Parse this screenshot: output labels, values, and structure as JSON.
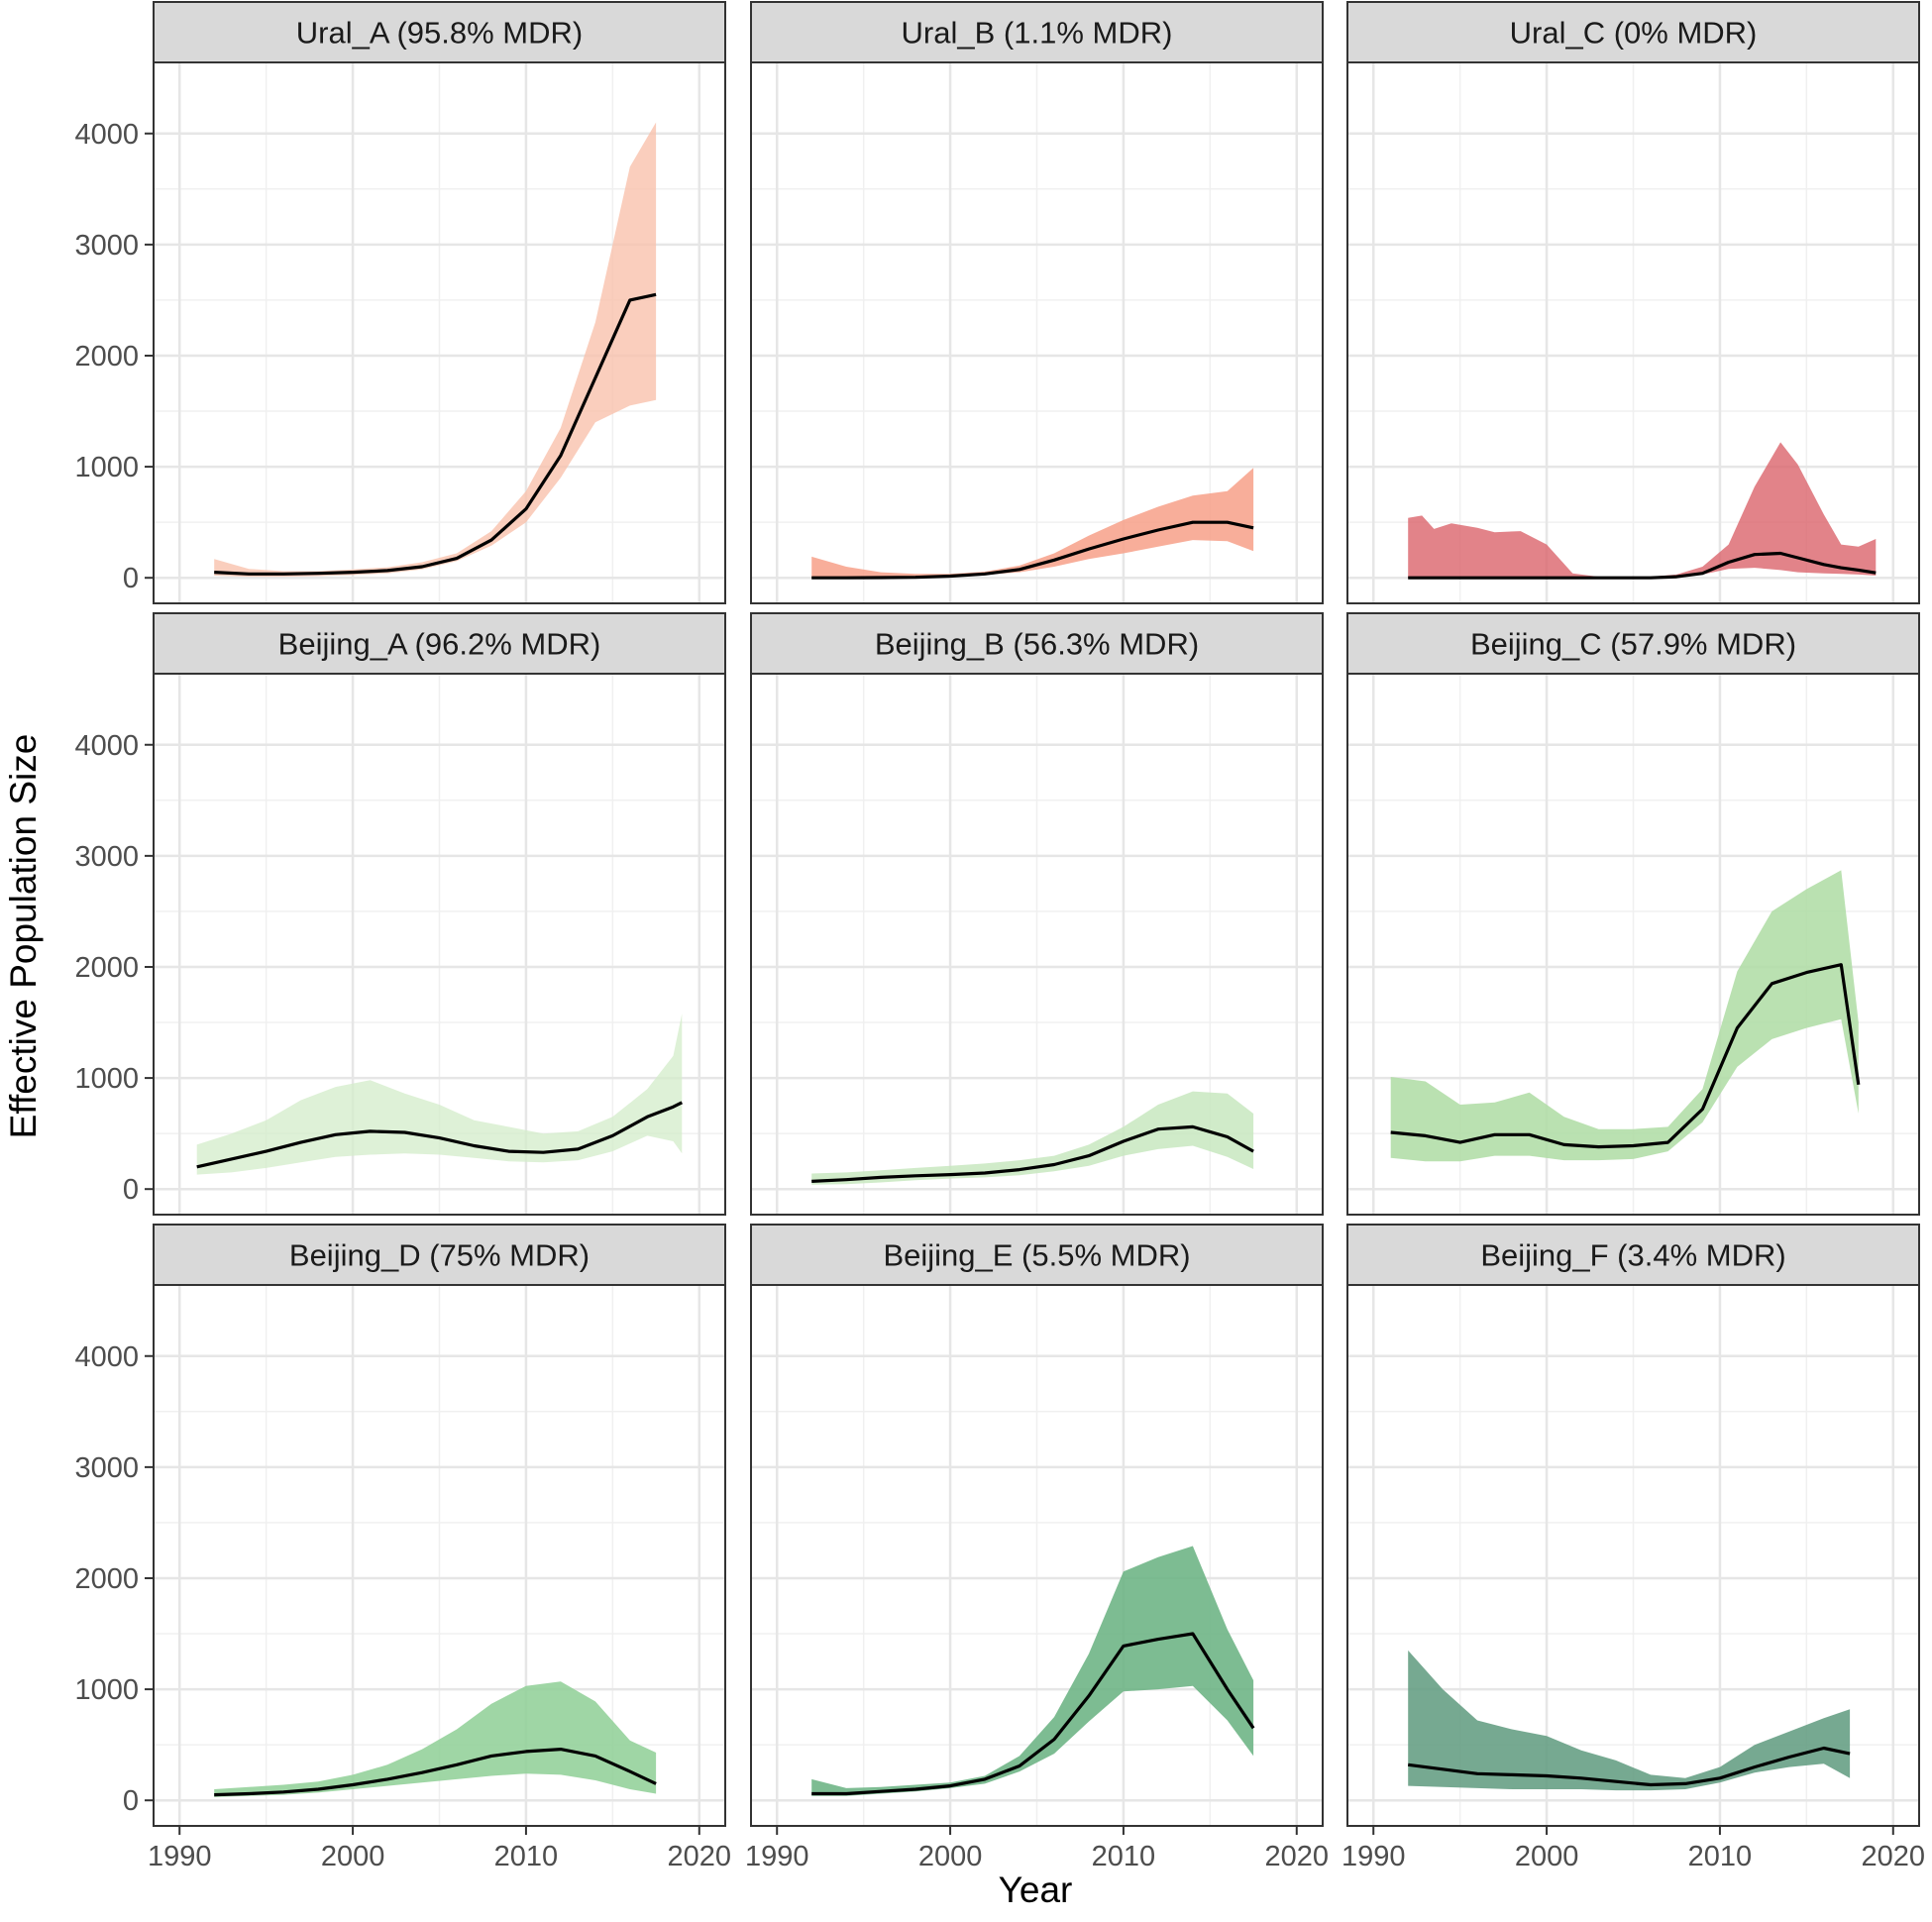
{
  "chart_data": {
    "type": "area",
    "title": "",
    "xlabel": "Year",
    "ylabel": "Effective Population Size",
    "xlim": [
      1988.5,
      2021.5
    ],
    "ylim": [
      -230,
      4640
    ],
    "xticks": [
      1990,
      2000,
      2010,
      2020
    ],
    "xtick_labels": [
      "1990",
      "2000",
      "2010",
      "2020"
    ],
    "yticks": [
      0,
      1000,
      2000,
      3000,
      4000
    ],
    "ytick_labels": [
      "0",
      "1000",
      "2000",
      "3000",
      "4000"
    ],
    "grid": true,
    "legend": "none",
    "panels": [
      {
        "name": "ural-a",
        "title": "Ural_A (95.8% MDR)",
        "color": "#f8c0aa",
        "opacity": 0.78,
        "x": [
          1992,
          1994,
          1996,
          1998,
          2000,
          2002,
          2004,
          2006,
          2008,
          2010,
          2012,
          2014,
          2016,
          2017.5
        ],
        "lower": [
          20,
          10,
          10,
          15,
          25,
          40,
          75,
          150,
          290,
          500,
          900,
          1400,
          1550,
          1600
        ],
        "median": [
          50,
          35,
          35,
          40,
          50,
          65,
          100,
          175,
          340,
          620,
          1100,
          1800,
          2500,
          2550
        ],
        "upper": [
          170,
          80,
          60,
          60,
          75,
          95,
          140,
          220,
          420,
          780,
          1350,
          2300,
          3700,
          4100
        ]
      },
      {
        "name": "ural-b",
        "title": "Ural_B (1.1% MDR)",
        "color": "#f7a088",
        "opacity": 0.85,
        "x": [
          1992,
          1994,
          1996,
          1998,
          2000,
          2002,
          2004,
          2006,
          2008,
          2010,
          2012,
          2014,
          2016,
          2017.5
        ],
        "lower": [
          0,
          0,
          0,
          2,
          10,
          25,
          50,
          100,
          170,
          220,
          280,
          340,
          330,
          240
        ],
        "median": [
          0,
          0,
          2,
          5,
          15,
          35,
          75,
          160,
          260,
          350,
          430,
          500,
          500,
          450
        ],
        "upper": [
          190,
          100,
          50,
          35,
          35,
          55,
          110,
          220,
          380,
          520,
          640,
          740,
          780,
          990
        ]
      },
      {
        "name": "ural-c",
        "title": "Ural_C (0% MDR)",
        "color": "#da6068",
        "opacity": 0.78,
        "x": [
          1992,
          1992.8,
          1993.5,
          1994.5,
          1996,
          1997,
          1998.5,
          2000,
          2001.5,
          2003,
          2004.5,
          2006,
          2007.5,
          2009,
          2010.5,
          2012,
          2013.5,
          2014.5,
          2016,
          2017,
          2018,
          2019
        ],
        "lower": [
          0,
          0,
          0,
          0,
          0,
          0,
          0,
          0,
          0,
          0,
          0,
          0,
          5,
          30,
          80,
          90,
          70,
          50,
          40,
          35,
          30,
          20
        ],
        "median": [
          0,
          0,
          0,
          0,
          0,
          0,
          0,
          0,
          0,
          0,
          0,
          0,
          10,
          40,
          140,
          210,
          220,
          180,
          120,
          90,
          70,
          45
        ],
        "upper": [
          540,
          560,
          440,
          490,
          450,
          410,
          420,
          300,
          40,
          10,
          5,
          10,
          30,
          100,
          300,
          820,
          1220,
          1020,
          570,
          300,
          280,
          350
        ]
      },
      {
        "name": "beijing-a",
        "title": "Beijing_A (96.2% MDR)",
        "color": "#d3ecc9",
        "opacity": 0.75,
        "x": [
          1991,
          1993,
          1995,
          1997,
          1999,
          2001,
          2003,
          2005,
          2007,
          2009,
          2011,
          2013,
          2015,
          2017,
          2018.5,
          2019
        ],
        "lower": [
          130,
          150,
          190,
          240,
          290,
          310,
          320,
          310,
          280,
          250,
          240,
          260,
          340,
          480,
          430,
          320
        ],
        "median": [
          200,
          270,
          340,
          420,
          490,
          520,
          510,
          460,
          390,
          340,
          330,
          360,
          480,
          650,
          740,
          780
        ],
        "upper": [
          400,
          500,
          620,
          800,
          920,
          980,
          860,
          760,
          620,
          560,
          500,
          520,
          650,
          900,
          1200,
          1580
        ]
      },
      {
        "name": "beijing-b",
        "title": "Beijing_B (56.3% MDR)",
        "color": "#c6e7bd",
        "opacity": 0.82,
        "x": [
          1992,
          1994,
          1996,
          1998,
          2000,
          2002,
          2004,
          2006,
          2008,
          2010,
          2012,
          2014,
          2016,
          2017.5
        ],
        "lower": [
          40,
          45,
          60,
          80,
          95,
          105,
          125,
          160,
          210,
          300,
          360,
          390,
          290,
          180
        ],
        "median": [
          70,
          85,
          105,
          120,
          130,
          145,
          175,
          220,
          300,
          430,
          540,
          560,
          470,
          340
        ],
        "upper": [
          140,
          150,
          170,
          190,
          210,
          230,
          260,
          300,
          400,
          560,
          760,
          880,
          860,
          680
        ]
      },
      {
        "name": "beijing-c",
        "title": "Beijing_C (57.9% MDR)",
        "color": "#aedca3",
        "opacity": 0.85,
        "x": [
          1991,
          1993,
          1995,
          1997,
          1999,
          2001,
          2003,
          2005,
          2007,
          2009,
          2011,
          2013,
          2015,
          2017,
          2018
        ],
        "lower": [
          280,
          250,
          250,
          300,
          300,
          260,
          260,
          270,
          340,
          600,
          1100,
          1350,
          1450,
          1530,
          680
        ],
        "median": [
          510,
          480,
          420,
          490,
          490,
          400,
          380,
          390,
          420,
          720,
          1450,
          1850,
          1950,
          2020,
          940
        ],
        "upper": [
          1010,
          970,
          760,
          780,
          870,
          650,
          540,
          540,
          560,
          900,
          1960,
          2500,
          2700,
          2870,
          1500
        ]
      },
      {
        "name": "beijing-d",
        "title": "Beijing_D (75% MDR)",
        "color": "#8ecf95",
        "opacity": 0.85,
        "x": [
          1992,
          1994,
          1996,
          1998,
          2000,
          2002,
          2004,
          2006,
          2008,
          2010,
          2012,
          2014,
          2016,
          2017.5
        ],
        "lower": [
          30,
          40,
          50,
          70,
          100,
          130,
          160,
          190,
          220,
          240,
          230,
          180,
          100,
          60
        ],
        "median": [
          50,
          60,
          75,
          100,
          140,
          190,
          250,
          320,
          400,
          440,
          460,
          400,
          260,
          150
        ],
        "upper": [
          100,
          120,
          140,
          170,
          230,
          320,
          460,
          640,
          870,
          1030,
          1070,
          890,
          540,
          430
        ]
      },
      {
        "name": "beijing-e",
        "title": "Beijing_E (5.5% MDR)",
        "color": "#6bb383",
        "opacity": 0.88,
        "x": [
          1992,
          1994,
          1996,
          1998,
          2000,
          2002,
          2004,
          2006,
          2008,
          2010,
          2012,
          2014,
          2016,
          2017.5
        ],
        "lower": [
          40,
          40,
          60,
          80,
          110,
          150,
          260,
          420,
          710,
          980,
          1000,
          1030,
          720,
          400
        ],
        "median": [
          60,
          60,
          80,
          100,
          130,
          190,
          310,
          550,
          940,
          1390,
          1450,
          1500,
          1000,
          650
        ],
        "upper": [
          190,
          110,
          120,
          140,
          160,
          220,
          400,
          750,
          1320,
          2060,
          2190,
          2290,
          1540,
          1080
        ]
      },
      {
        "name": "beijing-f",
        "title": "Beijing_F (3.4% MDR)",
        "color": "#5e9a7e",
        "opacity": 0.85,
        "x": [
          1992,
          1994,
          1996,
          1998,
          2000,
          2002,
          2004,
          2006,
          2008,
          2010,
          2012,
          2014,
          2016,
          2017.5
        ],
        "lower": [
          130,
          120,
          110,
          100,
          100,
          100,
          90,
          90,
          100,
          160,
          250,
          300,
          330,
          200
        ],
        "median": [
          320,
          280,
          240,
          230,
          220,
          200,
          170,
          140,
          150,
          200,
          300,
          390,
          470,
          420
        ],
        "upper": [
          1350,
          1000,
          720,
          640,
          580,
          450,
          360,
          230,
          200,
          300,
          500,
          620,
          740,
          820
        ]
      }
    ]
  }
}
